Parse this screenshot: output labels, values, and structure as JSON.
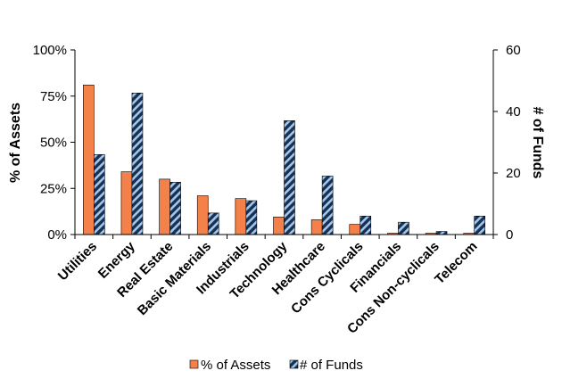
{
  "chart_data": {
    "type": "bar",
    "categories": [
      "Utilities",
      "Energy",
      "Real Estate",
      "Basic Materials",
      "Industrials",
      "Technology",
      "Healthcare",
      "Cons Cyclicals",
      "Financials",
      "Cons Non-cyclicals",
      "Telecom"
    ],
    "series": [
      {
        "name": "% of Assets",
        "axis": "left",
        "color": "#f4814a",
        "values": [
          0.81,
          0.34,
          0.3,
          0.21,
          0.195,
          0.095,
          0.08,
          0.055,
          0.007,
          0.007,
          0.007
        ]
      },
      {
        "name": "# of Funds",
        "axis": "right",
        "color": "#1c2f4e",
        "stripe_color": "#9ec9f0",
        "values": [
          26,
          46,
          17,
          7,
          11,
          37,
          19,
          6,
          4,
          1,
          6
        ]
      }
    ],
    "ylabel": "% of Assets",
    "ylim": [
      0,
      1
    ],
    "yticks": [
      "0%",
      "25%",
      "50%",
      "75%",
      "100%"
    ],
    "y2label": "# of Funds",
    "y2lim": [
      0,
      60
    ],
    "y2ticks": [
      "0",
      "20",
      "40",
      "60"
    ],
    "legend_position": "bottom",
    "grid": false
  }
}
